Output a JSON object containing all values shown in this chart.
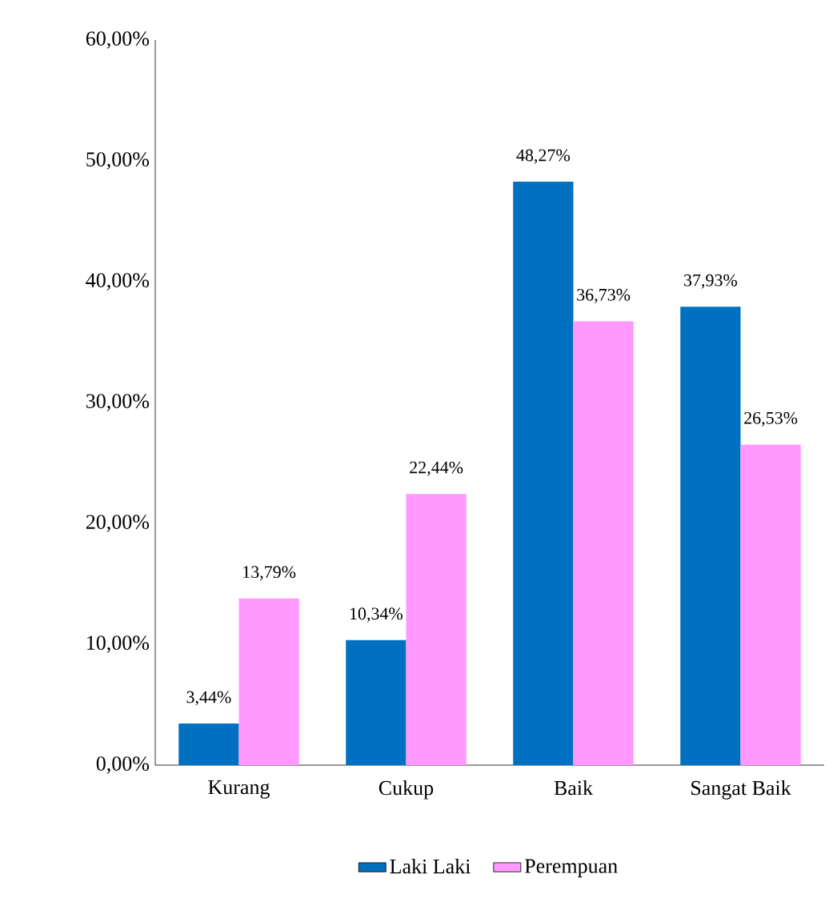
{
  "chart_data": {
    "type": "bar",
    "categories": [
      "Kurang",
      "Cukup",
      "Baik",
      "Sangat Baik"
    ],
    "series": [
      {
        "name": "Laki Laki",
        "color": "#0070c0",
        "values": [
          3.44,
          10.34,
          48.27,
          37.93
        ],
        "value_labels": [
          "3,44%",
          "10,34%",
          "48,27%",
          "37,93%"
        ]
      },
      {
        "name": "Perempuan",
        "color": "#ff99ff",
        "values": [
          13.79,
          22.44,
          36.73,
          26.53
        ],
        "value_labels": [
          "13,79%",
          "22,44%",
          "36,73%",
          "26,53%"
        ]
      }
    ],
    "ylim": [
      0,
      60
    ],
    "yticks": [
      {
        "value": 0,
        "label": "0,00%"
      },
      {
        "value": 10,
        "label": "10,00%"
      },
      {
        "value": 20,
        "label": "20,00%"
      },
      {
        "value": 30,
        "label": "30,00%"
      },
      {
        "value": 40,
        "label": "40,00%"
      },
      {
        "value": 50,
        "label": "50,00%"
      },
      {
        "value": 60,
        "label": "60,00%"
      }
    ],
    "grid": false,
    "legend": "bottom"
  }
}
